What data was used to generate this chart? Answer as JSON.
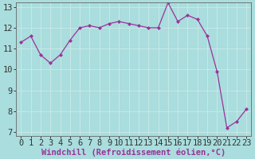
{
  "x": [
    0,
    1,
    2,
    3,
    4,
    5,
    6,
    7,
    8,
    9,
    10,
    11,
    12,
    13,
    14,
    15,
    16,
    17,
    18,
    19,
    20,
    21,
    22,
    23
  ],
  "y": [
    11.3,
    11.6,
    10.7,
    10.3,
    10.7,
    11.4,
    12.0,
    12.1,
    12.0,
    12.2,
    12.3,
    12.2,
    12.1,
    12.0,
    12.0,
    13.2,
    12.3,
    12.6,
    12.4,
    11.6,
    9.9,
    7.2,
    7.5,
    8.1
  ],
  "line_color": "#993399",
  "marker_color": "#993399",
  "bg_color": "#aadddd",
  "grid_color": "#bbeeee",
  "xlabel": "Windchill (Refroidissement éolien,°C)",
  "xlabel_color": "#993399",
  "ylim_min": 6.8,
  "ylim_max": 13.2,
  "yticks": [
    7,
    8,
    9,
    10,
    11,
    12,
    13
  ],
  "xticks": [
    0,
    1,
    2,
    3,
    4,
    5,
    6,
    7,
    8,
    9,
    10,
    11,
    12,
    13,
    14,
    15,
    16,
    17,
    18,
    19,
    20,
    21,
    22,
    23
  ],
  "tick_fontsize": 7.5,
  "xlabel_fontsize": 7.5,
  "xlim_min": -0.5,
  "xlim_max": 23.5
}
